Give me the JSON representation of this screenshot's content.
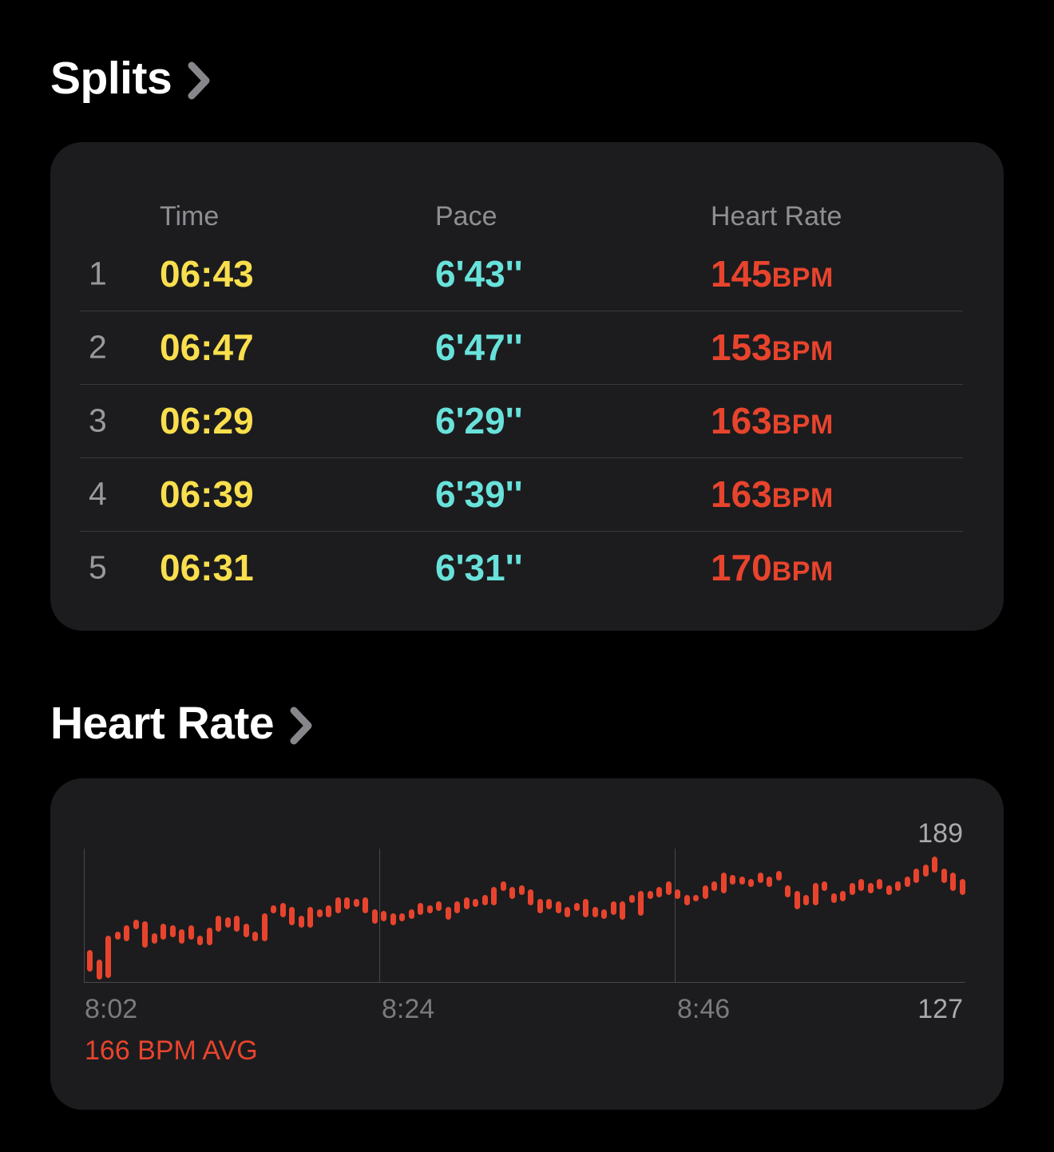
{
  "splits": {
    "title": "Splits",
    "columns": [
      "Time",
      "Pace",
      "Heart Rate"
    ],
    "rows": [
      {
        "n": "1",
        "time": "06:43",
        "pace": "6'43''",
        "hr": "145",
        "unit": "BPM"
      },
      {
        "n": "2",
        "time": "06:47",
        "pace": "6'47''",
        "hr": "153",
        "unit": "BPM"
      },
      {
        "n": "3",
        "time": "06:29",
        "pace": "6'29''",
        "hr": "163",
        "unit": "BPM"
      },
      {
        "n": "4",
        "time": "06:39",
        "pace": "6'39''",
        "hr": "163",
        "unit": "BPM"
      },
      {
        "n": "5",
        "time": "06:31",
        "pace": "6'31''",
        "hr": "170",
        "unit": "BPM"
      }
    ]
  },
  "heart_rate": {
    "title": "Heart Rate",
    "max_label": "189",
    "min_label": "127",
    "avg_label": "166 BPM AVG",
    "x_labels": [
      "8:02",
      "8:24",
      "8:46"
    ]
  },
  "chart_data": {
    "type": "bar",
    "subtype": "range-bars",
    "title": "Heart Rate",
    "ylabel": "BPM",
    "ylim": [
      127,
      189
    ],
    "x_ticks": [
      "8:02",
      "8:24",
      "8:46"
    ],
    "avg": 166,
    "max": 189,
    "min": 127,
    "grid": true,
    "bar_color": "#E8442D",
    "series": [
      {
        "name": "bpm_range",
        "values": [
          [
            132,
            143
          ],
          [
            128,
            138
          ],
          [
            129,
            150
          ],
          [
            148,
            152
          ],
          [
            147,
            155
          ],
          [
            153,
            158
          ],
          [
            144,
            157
          ],
          [
            146,
            151
          ],
          [
            148,
            156
          ],
          [
            149,
            155
          ],
          [
            146,
            153
          ],
          [
            148,
            155
          ],
          [
            145,
            150
          ],
          [
            145,
            154
          ],
          [
            152,
            160
          ],
          [
            154,
            159
          ],
          [
            152,
            160
          ],
          [
            149,
            156
          ],
          [
            147,
            152
          ],
          [
            147,
            161
          ],
          [
            161,
            165
          ],
          [
            159,
            166
          ],
          [
            155,
            164
          ],
          [
            154,
            160
          ],
          [
            154,
            164
          ],
          [
            159,
            163
          ],
          [
            159,
            165
          ],
          [
            161,
            169
          ],
          [
            163,
            169
          ],
          [
            164,
            168
          ],
          [
            161,
            169
          ],
          [
            156,
            163
          ],
          [
            157,
            162
          ],
          [
            155,
            161
          ],
          [
            157,
            161
          ],
          [
            158,
            163
          ],
          [
            160,
            166
          ],
          [
            161,
            165
          ],
          [
            162,
            167
          ],
          [
            158,
            164
          ],
          [
            161,
            167
          ],
          [
            163,
            169
          ],
          [
            164,
            168
          ],
          [
            165,
            170
          ],
          [
            165,
            174
          ],
          [
            172,
            177
          ],
          [
            168,
            174
          ],
          [
            170,
            175
          ],
          [
            165,
            173
          ],
          [
            161,
            168
          ],
          [
            163,
            168
          ],
          [
            161,
            167
          ],
          [
            159,
            164
          ],
          [
            162,
            166
          ],
          [
            159,
            168
          ],
          [
            159,
            164
          ],
          [
            158,
            163
          ],
          [
            160,
            167
          ],
          [
            158,
            167
          ],
          [
            166,
            170
          ],
          [
            160,
            172
          ],
          [
            168,
            172
          ],
          [
            169,
            174
          ],
          [
            170,
            177
          ],
          [
            168,
            173
          ],
          [
            165,
            170
          ],
          [
            167,
            170
          ],
          [
            168,
            175
          ],
          [
            172,
            177
          ],
          [
            171,
            181
          ],
          [
            175,
            180
          ],
          [
            175,
            179
          ],
          [
            174,
            178
          ],
          [
            176,
            181
          ],
          [
            174,
            179
          ],
          [
            177,
            182
          ],
          [
            169,
            175
          ],
          [
            163,
            172
          ],
          [
            165,
            170
          ],
          [
            165,
            176
          ],
          [
            172,
            177
          ],
          [
            166,
            171
          ],
          [
            167,
            172
          ],
          [
            170,
            176
          ],
          [
            172,
            178
          ],
          [
            171,
            176
          ],
          [
            173,
            178
          ],
          [
            170,
            175
          ],
          [
            172,
            177
          ],
          [
            174,
            179
          ],
          [
            176,
            183
          ],
          [
            179,
            185
          ],
          [
            181,
            189
          ],
          [
            176,
            183
          ],
          [
            172,
            181
          ],
          [
            170,
            178
          ]
        ]
      }
    ]
  },
  "colors": {
    "background": "#000000",
    "card": "#1C1C1E",
    "time_yellow": "#F9DF4D",
    "pace_teal": "#68E2DB",
    "heart_red": "#E8442D",
    "header_gray": "#8E8E93",
    "chevron_gray": "#86868B"
  }
}
